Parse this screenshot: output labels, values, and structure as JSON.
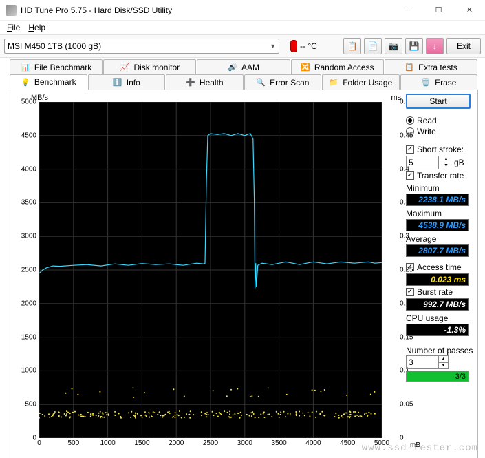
{
  "window": {
    "title": "HD Tune Pro 5.75 - Hard Disk/SSD Utility"
  },
  "menu": {
    "file": "File",
    "help": "Help"
  },
  "toolbar": {
    "drive": "MSI M450 1TB (1000 gB)",
    "temp": "-- °C",
    "exit": "Exit"
  },
  "tabs_top": [
    {
      "label": "File Benchmark"
    },
    {
      "label": "Disk monitor"
    },
    {
      "label": "AAM"
    },
    {
      "label": "Random Access"
    },
    {
      "label": "Extra tests"
    }
  ],
  "tabs_bottom": [
    {
      "label": "Benchmark",
      "active": true
    },
    {
      "label": "Info"
    },
    {
      "label": "Health"
    },
    {
      "label": "Error Scan"
    },
    {
      "label": "Folder Usage"
    },
    {
      "label": "Erase"
    }
  ],
  "chart": {
    "y_left_label": "MB/s",
    "y_right_label": "ms",
    "x_unit": "mB",
    "y_left": {
      "min": 0,
      "max": 5000,
      "step": 500
    },
    "y_right": {
      "min": 0,
      "max": 0.5,
      "step": 0.05
    },
    "x": {
      "min": 0,
      "max": 5000,
      "step": 500,
      "display_max": "5000"
    },
    "line_color": "#3bd8ff",
    "scatter_color": "#f5e642",
    "bg": "#000000",
    "grid": "#2d2d2d",
    "transfer_series": [
      [
        0,
        2450
      ],
      [
        50,
        2500
      ],
      [
        100,
        2530
      ],
      [
        200,
        2560
      ],
      [
        300,
        2555
      ],
      [
        500,
        2570
      ],
      [
        700,
        2580
      ],
      [
        900,
        2560
      ],
      [
        1100,
        2590
      ],
      [
        1300,
        2570
      ],
      [
        1500,
        2595
      ],
      [
        1700,
        2580
      ],
      [
        1900,
        2590
      ],
      [
        2100,
        2570
      ],
      [
        2300,
        2600
      ],
      [
        2400,
        2590
      ],
      [
        2420,
        2600
      ],
      [
        2440,
        3800
      ],
      [
        2460,
        4500
      ],
      [
        2500,
        4530
      ],
      [
        2600,
        4515
      ],
      [
        2700,
        4530
      ],
      [
        2800,
        4500
      ],
      [
        2900,
        4530
      ],
      [
        3000,
        4500
      ],
      [
        3050,
        4520
      ],
      [
        3080,
        4530
      ],
      [
        3120,
        4450
      ],
      [
        3140,
        3500
      ],
      [
        3150,
        2230
      ],
      [
        3160,
        2600
      ],
      [
        3170,
        2250
      ],
      [
        3190,
        2570
      ],
      [
        3250,
        2600
      ],
      [
        3400,
        2580
      ],
      [
        3600,
        2620
      ],
      [
        3800,
        2580
      ],
      [
        4000,
        2620
      ],
      [
        4200,
        2590
      ],
      [
        4400,
        2620
      ],
      [
        4600,
        2600
      ],
      [
        4800,
        2620
      ],
      [
        4900,
        2600
      ],
      [
        5000,
        2610
      ]
    ],
    "scatter_bands": [
      {
        "ymin": 0.03,
        "ymax": 0.04,
        "count": 220
      },
      {
        "ymin": 0.06,
        "ymax": 0.075,
        "count": 25
      }
    ]
  },
  "side": {
    "start": "Start",
    "read": "Read",
    "write": "Write",
    "short_stroke": "Short stroke:",
    "short_stroke_val": "5",
    "short_stroke_unit": "gB",
    "transfer": "Transfer rate",
    "minimum": "Minimum",
    "minimum_val": "2238.1 MB/s",
    "maximum": "Maximum",
    "maximum_val": "4538.9 MB/s",
    "average": "Average",
    "average_val": "2807.7 MB/s",
    "access": "Access time",
    "access_val": "0.023 ms",
    "burst": "Burst rate",
    "burst_val": "992.7 MB/s",
    "cpu": "CPU usage",
    "cpu_val": "-1.3%",
    "passes": "Number of passes",
    "passes_val": "3",
    "passes_txt": "3/3",
    "passes_pct": 100
  },
  "watermark": "www.ssd-tester.com"
}
